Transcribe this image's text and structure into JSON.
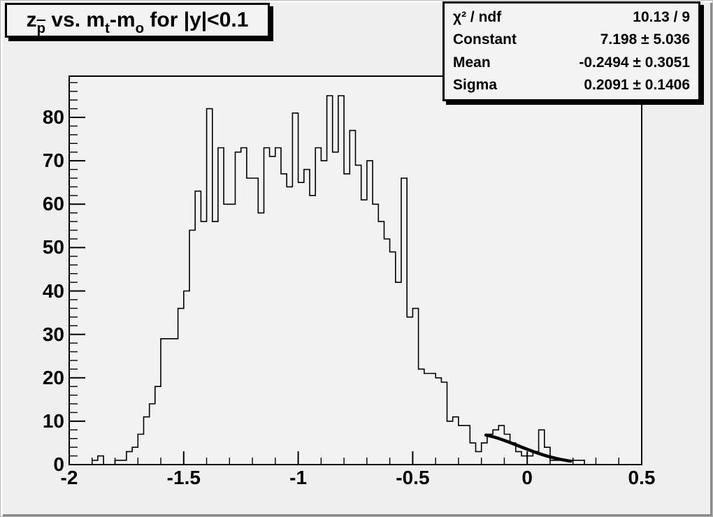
{
  "canvas": {
    "bg": "#efefef",
    "frame_bg": "#f2f2f2",
    "line_color": "#000000"
  },
  "title": {
    "segments": [
      {
        "text": "z"
      },
      {
        "text": "p",
        "sub": true,
        "overline": true
      },
      {
        "text": " vs. m"
      },
      {
        "text": "t",
        "sub": true
      },
      {
        "text": "-m"
      },
      {
        "text": "o",
        "sub": true
      },
      {
        "text": " for |y|<0.1"
      }
    ]
  },
  "stats": {
    "rows": [
      {
        "label": "χ² / ndf",
        "value": "10.13 / 9"
      },
      {
        "label": "Constant",
        "value": "7.198 ± 5.036"
      },
      {
        "label": "Mean",
        "value": "-0.2494 ± 0.3051"
      },
      {
        "label": "Sigma",
        "value": "0.2091 ± 0.1406"
      }
    ]
  },
  "chart_data": {
    "type": "bar",
    "subtype": "step-histogram",
    "title": "z_p vs. m_t-m_o for |y|<0.1",
    "xlabel": "",
    "ylabel": "",
    "x_range": [
      -2,
      0.5
    ],
    "y_range": [
      0,
      89.5
    ],
    "bin_start": -2,
    "bin_width": 0.025,
    "values": [
      0,
      0,
      0,
      0,
      1,
      2,
      0,
      0,
      1,
      1,
      3,
      4,
      7,
      11,
      14,
      18,
      29,
      29,
      29,
      36,
      40,
      54,
      63,
      56,
      82,
      56,
      73,
      60,
      60,
      72,
      73,
      66,
      66,
      58,
      73,
      71,
      73,
      67,
      64,
      81,
      65,
      68,
      62,
      73,
      70,
      85,
      72,
      85,
      67,
      77,
      69,
      61,
      70,
      60,
      56,
      52,
      49,
      42,
      66,
      34,
      36,
      22,
      21,
      21,
      20,
      19,
      10,
      11,
      9,
      9,
      5,
      3,
      5,
      7,
      8,
      9,
      7,
      5,
      3,
      2,
      2,
      3,
      8,
      4,
      1,
      1,
      1,
      1,
      1,
      1,
      0,
      0,
      0,
      0,
      0,
      0,
      0,
      0,
      0,
      0
    ],
    "x_ticks": [
      -2,
      -1.5,
      -1,
      -0.5,
      0,
      0.5
    ],
    "x_tick_labels": [
      "-2",
      "-1.5",
      "-1",
      "-0.5",
      "0",
      "0.5"
    ],
    "x_minor_step": 0.1,
    "y_ticks": [
      0,
      10,
      20,
      30,
      40,
      50,
      60,
      70,
      80
    ],
    "y_tick_labels": [
      "0",
      "10",
      "20",
      "30",
      "40",
      "50",
      "60",
      "70",
      "80"
    ],
    "y_minor_step": 2,
    "y_minor_max": 88,
    "grid": false,
    "legend": false,
    "fit": {
      "type": "gaussian",
      "constant": 7.198,
      "mean": -0.2494,
      "sigma": 0.2091,
      "draw_range": [
        -0.18,
        0.19
      ],
      "color": "#000000",
      "line_width": 4.5
    }
  }
}
